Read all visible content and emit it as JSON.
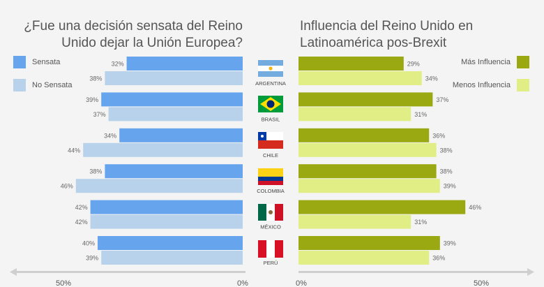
{
  "left_title": "¿Fue una decisión sensata del Reino Unido dejar la Unión Europea?",
  "right_title": "Influencia del Reino Unido en Latinoamérica pos-Brexit",
  "colors": {
    "sensata": "#67a4ee",
    "no_sensata": "#b9d2ec",
    "mas_influencia": "#9aa812",
    "menos_influencia": "#e1ee86"
  },
  "chart_data": [
    {
      "type": "bar",
      "orientation": "horizontal",
      "title": "¿Fue una decisión sensata del Reino Unido dejar la Unión Europea?",
      "categories": [
        "ARGENTINA",
        "BRASIL",
        "CHILE",
        "COLOMBIA",
        "MÉXICO",
        "PERÚ"
      ],
      "series": [
        {
          "name": "Sensata",
          "values": [
            32,
            39,
            34,
            38,
            42,
            40
          ],
          "labels": [
            "32%",
            "39%",
            "34%",
            "38%",
            "42%",
            "40%"
          ]
        },
        {
          "name": "No Sensata",
          "values": [
            38,
            37,
            44,
            46,
            42,
            39
          ],
          "labels": [
            "38%",
            "37%",
            "44%",
            "46%",
            "42%",
            "39%"
          ]
        }
      ],
      "xlim": [
        50,
        0
      ],
      "ticks": [
        "50%",
        "0%"
      ],
      "legend": "top-left"
    },
    {
      "type": "bar",
      "orientation": "horizontal",
      "title": "Influencia del Reino Unido en Latinoamérica pos-Brexit",
      "categories": [
        "ARGENTINA",
        "BRASIL",
        "CHILE",
        "COLOMBIA",
        "MÉXICO",
        "PERÚ"
      ],
      "series": [
        {
          "name": "Más Influencia",
          "values": [
            29,
            37,
            36,
            38,
            46,
            39
          ],
          "labels": [
            "29%",
            "37%",
            "36%",
            "38%",
            "46%",
            "39%"
          ]
        },
        {
          "name": "Menos Influencia",
          "values": [
            34,
            31,
            38,
            39,
            31,
            36
          ],
          "labels": [
            "34%",
            "31%",
            "38%",
            "39%",
            "31%",
            "36%"
          ]
        }
      ],
      "xlim": [
        0,
        50
      ],
      "ticks": [
        "0%",
        "50%"
      ],
      "legend": "top-right"
    }
  ]
}
